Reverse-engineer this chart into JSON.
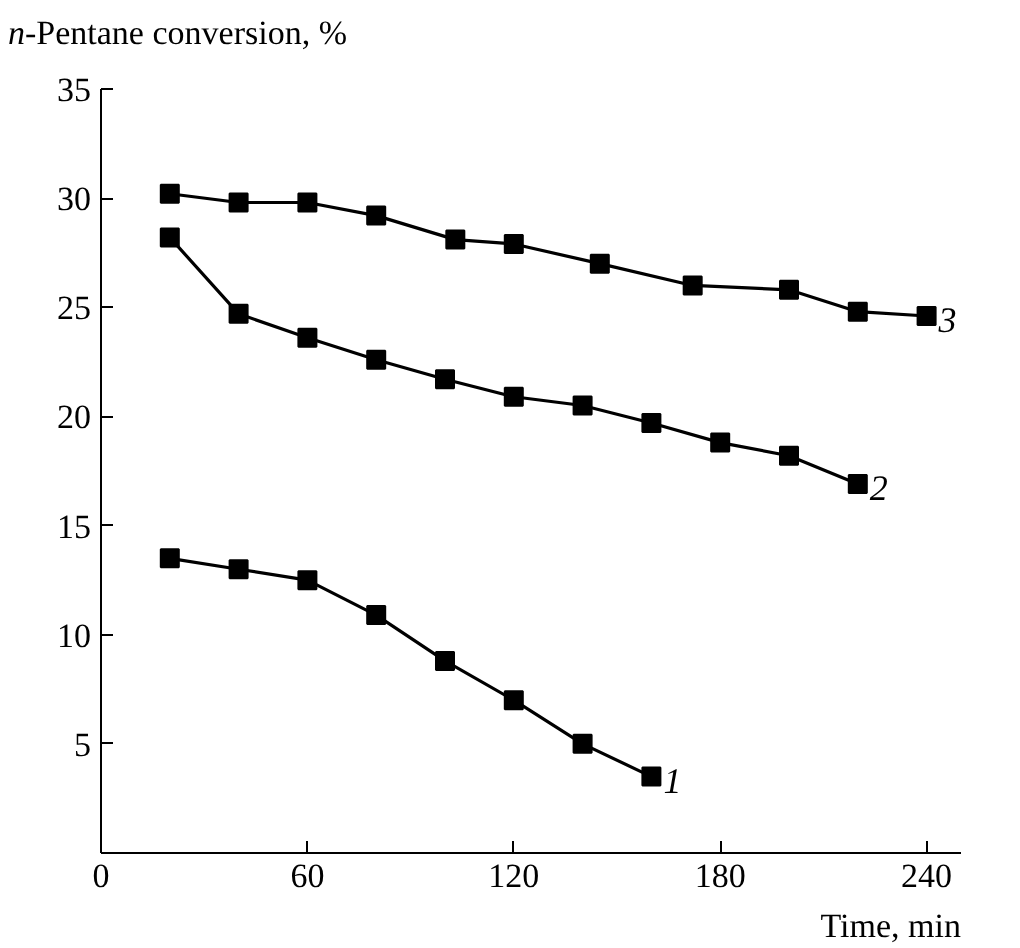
{
  "chart_data": {
    "type": "line",
    "ylabel": "n-Pentane conversion, %",
    "xlabel": "Time, min",
    "xlim": [
      0,
      250
    ],
    "ylim": [
      0,
      35
    ],
    "xticks": [
      0,
      60,
      120,
      180,
      240
    ],
    "yticks": [
      5,
      10,
      15,
      20,
      25,
      30,
      35
    ],
    "marker": "square",
    "line_style": "solid",
    "grid": false,
    "series": [
      {
        "color": "#000000",
        "x": [
          20,
          40,
          60,
          80,
          100,
          120,
          140,
          160
        ],
        "values": [
          13.5,
          13.0,
          12.5,
          10.9,
          8.8,
          7.0,
          5.0,
          3.5
        ]
      },
      {
        "color": "#000000",
        "x": [
          20,
          40,
          60,
          80,
          100,
          120,
          140,
          160,
          180,
          200,
          220
        ],
        "values": [
          28.2,
          24.7,
          23.6,
          22.6,
          21.7,
          20.9,
          20.5,
          19.7,
          18.8,
          18.2,
          16.9
        ]
      },
      {
        "color": "#000000",
        "x": [
          20,
          40,
          60,
          80,
          103,
          120,
          145,
          172,
          200,
          220,
          240
        ],
        "values": [
          30.2,
          29.8,
          29.8,
          29.2,
          28.1,
          27.9,
          27.0,
          26.0,
          25.8,
          24.8,
          24.6
        ]
      }
    ],
    "annotations": [
      {
        "text": "1",
        "x": 160,
        "y": 3.5
      },
      {
        "text": "2",
        "x": 220,
        "y": 16.9
      },
      {
        "text": "3",
        "x": 240,
        "y": 24.6
      }
    ]
  }
}
